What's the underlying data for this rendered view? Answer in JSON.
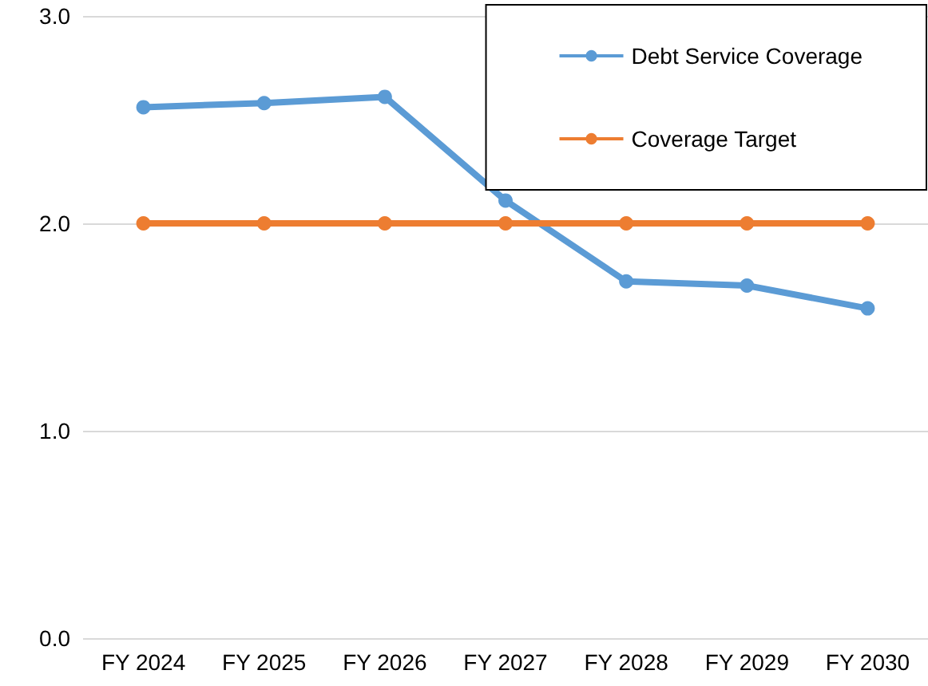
{
  "chart_data": {
    "type": "line",
    "categories": [
      "FY 2024",
      "FY 2025",
      "FY 2026",
      "FY 2027",
      "FY 2028",
      "FY 2029",
      "FY 2030"
    ],
    "series": [
      {
        "name": "Debt Service Coverage",
        "color": "#5b9bd5",
        "values": [
          2.56,
          2.58,
          2.61,
          2.11,
          1.72,
          1.7,
          1.59
        ]
      },
      {
        "name": "Coverage Target",
        "color": "#ed7d31",
        "values": [
          2.0,
          2.0,
          2.0,
          2.0,
          2.0,
          2.0,
          2.0
        ]
      }
    ],
    "ylim": [
      0,
      3
    ],
    "yticks": [
      {
        "value": 0,
        "label": "0.0"
      },
      {
        "value": 1,
        "label": "1.0"
      },
      {
        "value": 2,
        "label": "2.0"
      },
      {
        "value": 3,
        "label": "3.0"
      }
    ],
    "grid": "y",
    "legend": "top right",
    "marker": "circle",
    "line_style": "solid"
  }
}
